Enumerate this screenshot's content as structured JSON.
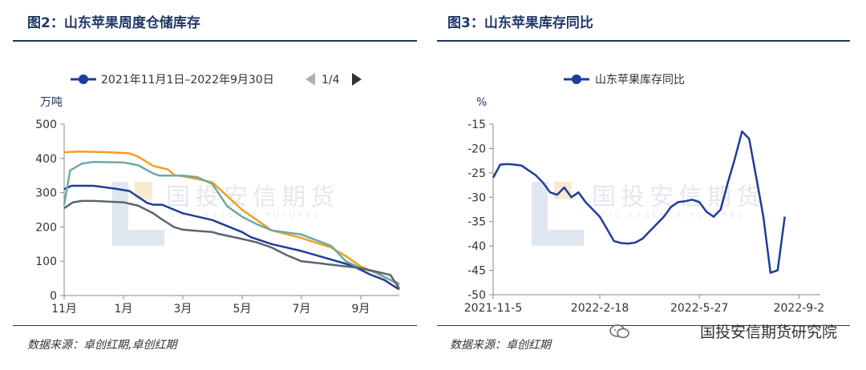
{
  "left": {
    "title": "图2：山东苹果周度仓储库存",
    "legend_text": "2021年11月1日–2022年9月30日",
    "page_indicator": "1/4",
    "y_unit": "万吨",
    "source": "数据来源：卓创红期,卓创红期",
    "watermark_cn": "国投安信期货",
    "watermark_en": "SDIC ESSENCE FUTURES"
  },
  "right": {
    "title": "图3：山东苹果库存同比",
    "legend_text": "山东苹果库存同比",
    "y_unit": "%",
    "source": "数据来源：卓创红期",
    "watermark_cn": "国投安信期货",
    "watermark_en": "SDIC ESSENCE FUTURES",
    "brand": "国投安信期货研究院"
  },
  "colors": {
    "blue": "#1f3d99",
    "orange": "#f0a020",
    "teal": "#6fa8a8",
    "gray": "#5a6570",
    "title": "#1f3864"
  },
  "chart_data": [
    {
      "type": "line",
      "title": "山东苹果周度仓储库存",
      "ylabel": "万吨",
      "ylim": [
        0,
        500
      ],
      "yticks": [
        0,
        100,
        200,
        300,
        400,
        500
      ],
      "xlim": [
        0,
        11.3
      ],
      "xticks": [
        {
          "label": "11月",
          "x": 0
        },
        {
          "label": "1月",
          "x": 2
        },
        {
          "label": "3月",
          "x": 4
        },
        {
          "label": "5月",
          "x": 6
        },
        {
          "label": "7月",
          "x": 8
        },
        {
          "label": "9月",
          "x": 10
        }
      ],
      "series": [
        {
          "name": "2021年11月1日–2022年9月30日",
          "color": "#1f3d99",
          "points": [
            [
              0,
              310
            ],
            [
              0.25,
              320
            ],
            [
              1,
              320
            ],
            [
              1.7,
              312
            ],
            [
              2.2,
              305
            ],
            [
              2.8,
              270
            ],
            [
              3,
              265
            ],
            [
              3.3,
              265
            ],
            [
              4,
              240
            ],
            [
              5,
              220
            ],
            [
              6,
              185
            ],
            [
              6.3,
              170
            ],
            [
              7,
              150
            ],
            [
              8,
              130
            ],
            [
              9,
              105
            ],
            [
              9.6,
              90
            ],
            [
              10,
              75
            ],
            [
              10.3,
              62
            ],
            [
              10.8,
              45
            ],
            [
              11.1,
              28
            ],
            [
              11.3,
              18
            ]
          ]
        },
        {
          "name": "orange",
          "color": "#f0a020",
          "points": [
            [
              0,
              418
            ],
            [
              0.5,
              420
            ],
            [
              1.5,
              418
            ],
            [
              2.2,
              415
            ],
            [
              2.5,
              405
            ],
            [
              3,
              378
            ],
            [
              3.3,
              372
            ],
            [
              3.5,
              368
            ],
            [
              3.7,
              352
            ],
            [
              4.5,
              340
            ],
            [
              5,
              330
            ],
            [
              5.5,
              290
            ],
            [
              6,
              250
            ],
            [
              6.5,
              220
            ],
            [
              7,
              190
            ],
            [
              8,
              168
            ],
            [
              9,
              140
            ],
            [
              9.5,
              115
            ],
            [
              10,
              85
            ],
            [
              10.4,
              70
            ],
            [
              11,
              45
            ],
            [
              11.3,
              30
            ]
          ]
        },
        {
          "name": "teal",
          "color": "#6fa8a8",
          "points": [
            [
              0,
              265
            ],
            [
              0.2,
              365
            ],
            [
              0.6,
              385
            ],
            [
              1,
              390
            ],
            [
              2,
              388
            ],
            [
              2.5,
              380
            ],
            [
              3,
              356
            ],
            [
              3.2,
              350
            ],
            [
              4,
              350
            ],
            [
              4.5,
              345
            ],
            [
              5,
              325
            ],
            [
              5.5,
              260
            ],
            [
              6,
              230
            ],
            [
              6.5,
              208
            ],
            [
              7,
              190
            ],
            [
              8,
              178
            ],
            [
              9,
              145
            ],
            [
              9.5,
              100
            ],
            [
              10,
              80
            ],
            [
              10.5,
              68
            ],
            [
              11,
              45
            ],
            [
              11.3,
              35
            ]
          ]
        },
        {
          "name": "gray",
          "color": "#5a6570",
          "points": [
            [
              0,
              255
            ],
            [
              0.3,
              272
            ],
            [
              0.6,
              276
            ],
            [
              1,
              276
            ],
            [
              2,
              272
            ],
            [
              2.5,
              262
            ],
            [
              3,
              240
            ],
            [
              3.3,
              222
            ],
            [
              3.7,
              200
            ],
            [
              4,
              192
            ],
            [
              4.3,
              190
            ],
            [
              5,
              185
            ],
            [
              5.2,
              180
            ],
            [
              6,
              165
            ],
            [
              6.5,
              155
            ],
            [
              7,
              140
            ],
            [
              7.5,
              118
            ],
            [
              8,
              100
            ],
            [
              8.5,
              95
            ],
            [
              9,
              90
            ],
            [
              10,
              80
            ],
            [
              10.5,
              70
            ],
            [
              11,
              60
            ],
            [
              11.3,
              20
            ]
          ]
        }
      ]
    },
    {
      "type": "line",
      "title": "山东苹果库存同比",
      "ylabel": "%",
      "ylim": [
        -50,
        -15
      ],
      "yticks": [
        -15,
        -20,
        -25,
        -30,
        -35,
        -40,
        -45,
        -50
      ],
      "xlim": [
        0,
        46
      ],
      "xticks": [
        {
          "label": "2021-11-5",
          "x": 0
        },
        {
          "label": "2022-2-18",
          "x": 15
        },
        {
          "label": "2022-5-27",
          "x": 29
        },
        {
          "label": "2022-9-2",
          "x": 43
        }
      ],
      "series": [
        {
          "name": "山东苹果库存同比",
          "color": "#1f3d99",
          "points": [
            [
              0,
              -26
            ],
            [
              1,
              -23.3
            ],
            [
              2,
              -23.2
            ],
            [
              3,
              -23.3
            ],
            [
              4,
              -23.5
            ],
            [
              5,
              -24.5
            ],
            [
              6,
              -25.5
            ],
            [
              7,
              -27
            ],
            [
              8,
              -29
            ],
            [
              9,
              -29.5
            ],
            [
              10,
              -28
            ],
            [
              11,
              -30
            ],
            [
              12,
              -29
            ],
            [
              13,
              -31
            ],
            [
              14,
              -32.5
            ],
            [
              15,
              -34
            ],
            [
              16,
              -36.5
            ],
            [
              17,
              -39
            ],
            [
              18,
              -39.4
            ],
            [
              19,
              -39.5
            ],
            [
              20,
              -39.3
            ],
            [
              21,
              -38.5
            ],
            [
              22,
              -37
            ],
            [
              23,
              -35.5
            ],
            [
              24,
              -34
            ],
            [
              25,
              -32
            ],
            [
              26,
              -31
            ],
            [
              27,
              -30.8
            ],
            [
              28,
              -30.5
            ],
            [
              29,
              -31
            ],
            [
              30,
              -33
            ],
            [
              31,
              -34
            ],
            [
              32,
              -32.5
            ],
            [
              33,
              -27
            ],
            [
              34,
              -22
            ],
            [
              35,
              -16.5
            ],
            [
              36,
              -18
            ],
            [
              37,
              -26
            ],
            [
              38,
              -34
            ],
            [
              39,
              -45.5
            ],
            [
              40,
              -45
            ],
            [
              41,
              -34
            ]
          ]
        }
      ]
    }
  ]
}
